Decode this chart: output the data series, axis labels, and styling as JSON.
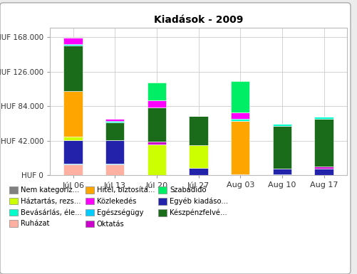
{
  "title": "Kiadások - 2009",
  "categories": [
    "Júl 06",
    "Júl 13",
    "Júl 20",
    "Júl 27",
    "Aug 03",
    "Aug 10",
    "Aug 17"
  ],
  "yticks": [
    0,
    42000,
    84000,
    126000,
    168000
  ],
  "ytick_labels": [
    "HUF 0",
    "HUF 42.000",
    "HUF 84.000",
    "HUF 126.000",
    "HUF 168.000"
  ],
  "ylim": [
    0,
    180000
  ],
  "series": [
    {
      "name": "Nem kategoriz...",
      "color": "#808080",
      "values": [
        0,
        0,
        0,
        0,
        0,
        0,
        0
      ]
    },
    {
      "name": "Ruházat",
      "color": "#FFB0A0",
      "values": [
        13000,
        13000,
        0,
        0,
        0,
        0,
        0
      ]
    },
    {
      "name": "Egészségügy",
      "color": "#00CCFF",
      "values": [
        1500,
        1500,
        0,
        0,
        1500,
        1500,
        0
      ]
    },
    {
      "name": "Egyéb kiadáso...",
      "color": "#2222AA",
      "values": [
        28000,
        28000,
        0,
        9000,
        0,
        7000,
        8000
      ]
    },
    {
      "name": "Háztartás, rezs...",
      "color": "#CCFF00",
      "values": [
        5000,
        0,
        38000,
        28000,
        0,
        0,
        0
      ]
    },
    {
      "name": "Hitel, biztosítá...",
      "color": "#FFA500",
      "values": [
        55000,
        0,
        0,
        0,
        65000,
        0,
        0
      ]
    },
    {
      "name": "Oktatás",
      "color": "#CC00CC",
      "values": [
        0,
        0,
        3000,
        0,
        0,
        0,
        3000
      ]
    },
    {
      "name": "Készpénzfelvé...",
      "color": "#1A6B1A",
      "values": [
        55000,
        22000,
        42000,
        35000,
        0,
        52000,
        58000
      ]
    },
    {
      "name": "Bevásárlás, éle...",
      "color": "#00FFCC",
      "values": [
        2000,
        1500,
        0,
        0,
        2000,
        2000,
        2000
      ]
    },
    {
      "name": "Közlekedés",
      "color": "#FF00FF",
      "values": [
        8000,
        3000,
        8000,
        0,
        8000,
        0,
        0
      ]
    },
    {
      "name": "Szabadidő",
      "color": "#00EE66",
      "values": [
        0,
        0,
        22000,
        0,
        38000,
        0,
        0
      ]
    }
  ],
  "bg_color": "#ECECEC",
  "plot_bg_color": "#FFFFFF",
  "bar_width": 0.45,
  "figsize": [
    5.02,
    3.85
  ],
  "dpi": 100,
  "legend_items": [
    [
      "Nem kategoriz...",
      "#808080"
    ],
    [
      "Háztartás, rezs...",
      "#CCFF00"
    ],
    [
      "Bevásárlás, éle...",
      "#00FFCC"
    ],
    [
      "Ruházat",
      "#FFB0A0"
    ],
    [
      "Hitel, biztosítá...",
      "#FFA500"
    ],
    [
      "Közlekedés",
      "#FF00FF"
    ],
    [
      "Egészségügy",
      "#00CCFF"
    ],
    [
      "Oktatás",
      "#CC00CC"
    ],
    [
      "Szabadidő",
      "#00EE66"
    ],
    [
      "Egyéb kiadáso...",
      "#2222AA"
    ],
    [
      "Készpénzfelvé...",
      "#1A6B1A"
    ]
  ]
}
